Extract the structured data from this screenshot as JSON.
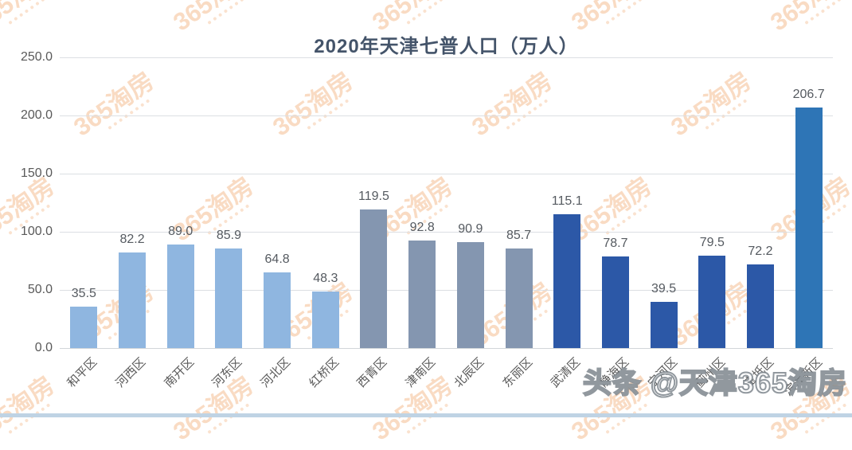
{
  "title": "2020年天津七普人口（万人）",
  "chart_data": {
    "type": "bar",
    "title": "2020年天津七普人口（万人）",
    "categories": [
      "和平区",
      "河西区",
      "南开区",
      "河东区",
      "河北区",
      "红桥区",
      "西青区",
      "津南区",
      "北辰区",
      "东丽区",
      "武清区",
      "静海区",
      "宁河区",
      "蓟州区",
      "宝坻区",
      "滨海新区"
    ],
    "values": [
      35.5,
      82.2,
      89.0,
      85.9,
      64.8,
      48.3,
      119.5,
      92.8,
      90.9,
      85.7,
      115.1,
      78.7,
      39.5,
      79.5,
      72.2,
      206.7
    ],
    "value_labels": [
      "35.5",
      "82.2",
      "89.0",
      "85.9",
      "64.8",
      "48.3",
      "119.5",
      "92.8",
      "90.9",
      "85.7",
      "115.1",
      "78.7",
      "39.5",
      "79.5",
      "72.2",
      "206.7"
    ],
    "bar_colors": [
      "#8FB6E0",
      "#8FB6E0",
      "#8FB6E0",
      "#8FB6E0",
      "#8FB6E0",
      "#8FB6E0",
      "#8496B0",
      "#8496B0",
      "#8496B0",
      "#8496B0",
      "#2C58A7",
      "#2C58A7",
      "#2C58A7",
      "#2C58A7",
      "#2C58A7",
      "#2E75B6"
    ],
    "xlabel": "",
    "ylabel": "",
    "ylim": [
      0,
      250
    ],
    "ytick_labels": [
      "250.0",
      "200.0",
      "150.0",
      "100.0",
      "50.0",
      "0.0"
    ],
    "grid": true,
    "legend_position": "none"
  },
  "watermark": {
    "brand": "365淘房",
    "headline": "头条 @天津365淘房"
  },
  "colors": {
    "title": "#44546A",
    "axis_label": "#595959",
    "gridline": "#DCDFE3",
    "watermark_orange": "#EEA060",
    "bottom_strip": "#BFD3E4",
    "light_blue_bars": "#8FB6E0",
    "gray_blue_bars": "#8496B0",
    "dark_blue_bars": "#2C58A7",
    "bright_blue_bar": "#2E75B6"
  }
}
